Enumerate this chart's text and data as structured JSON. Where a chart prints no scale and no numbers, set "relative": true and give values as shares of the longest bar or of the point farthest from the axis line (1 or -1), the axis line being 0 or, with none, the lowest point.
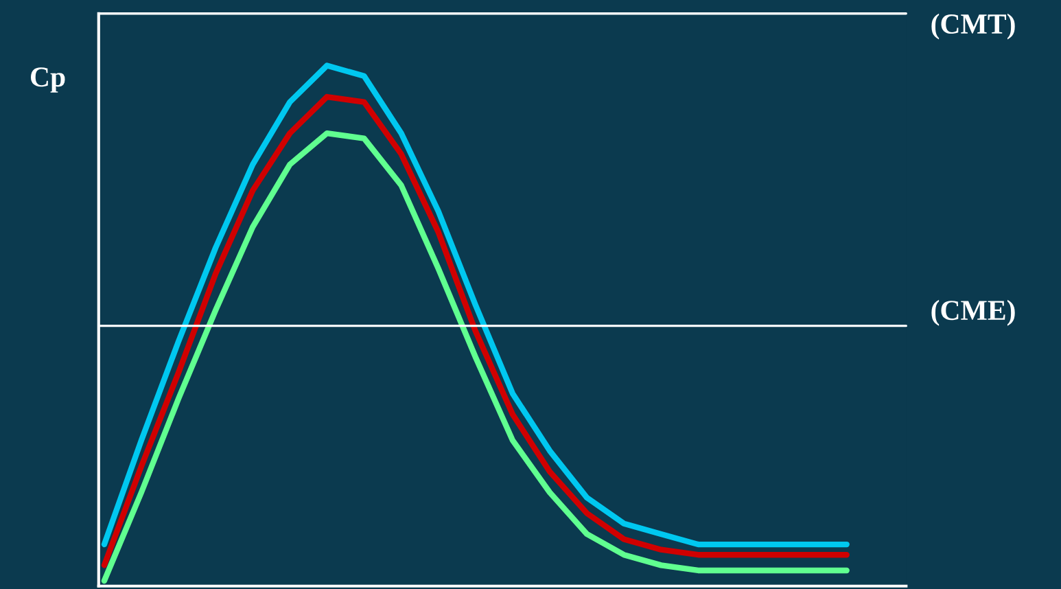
{
  "chart_data": {
    "type": "line",
    "ylabel": "Cp",
    "relative": true,
    "grid": false,
    "marker": "none",
    "line_style": "solid",
    "categories": [
      null,
      null,
      null,
      null,
      null,
      null,
      null,
      null,
      null,
      null,
      null,
      null,
      null,
      null,
      null,
      null,
      null,
      null,
      null,
      null,
      null
    ],
    "series": [
      {
        "color": "#00c8f0",
        "values": [
          0.08,
          0.28,
          0.47,
          0.65,
          0.81,
          0.93,
          1.0,
          0.98,
          0.87,
          0.72,
          0.54,
          0.37,
          0.26,
          0.17,
          0.12,
          0.1,
          0.08,
          0.08,
          0.08,
          0.08,
          0.08
        ]
      },
      {
        "color": "#d00000",
        "values": [
          0.04,
          0.23,
          0.41,
          0.6,
          0.76,
          0.87,
          0.94,
          0.93,
          0.83,
          0.68,
          0.49,
          0.33,
          0.22,
          0.14,
          0.09,
          0.07,
          0.06,
          0.06,
          0.06,
          0.06,
          0.06
        ]
      },
      {
        "color": "#60ff90",
        "values": [
          0.01,
          0.18,
          0.36,
          0.53,
          0.69,
          0.81,
          0.87,
          0.86,
          0.77,
          0.61,
          0.44,
          0.28,
          0.18,
          0.1,
          0.06,
          0.04,
          0.03,
          0.03,
          0.03,
          0.03,
          0.03
        ]
      }
    ],
    "ref_lines": [
      {
        "axis": "y",
        "value": 1.1,
        "label": "(CMT)",
        "color": "#ffffff"
      },
      {
        "axis": "y",
        "value": 0.5,
        "label": "(CME)",
        "color": "#ffffff"
      }
    ]
  }
}
